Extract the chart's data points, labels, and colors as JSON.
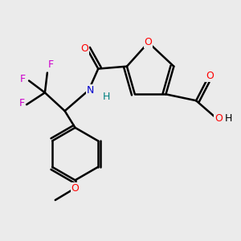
{
  "bg_color": "#ebebeb",
  "bond_color": "#000000",
  "bond_width": 1.8,
  "figsize": [
    3.0,
    3.0
  ],
  "dpi": 100,
  "colors": {
    "O": "#ff0000",
    "N": "#0000cc",
    "F": "#cc00cc",
    "H": "#008080",
    "C": "#000000"
  }
}
